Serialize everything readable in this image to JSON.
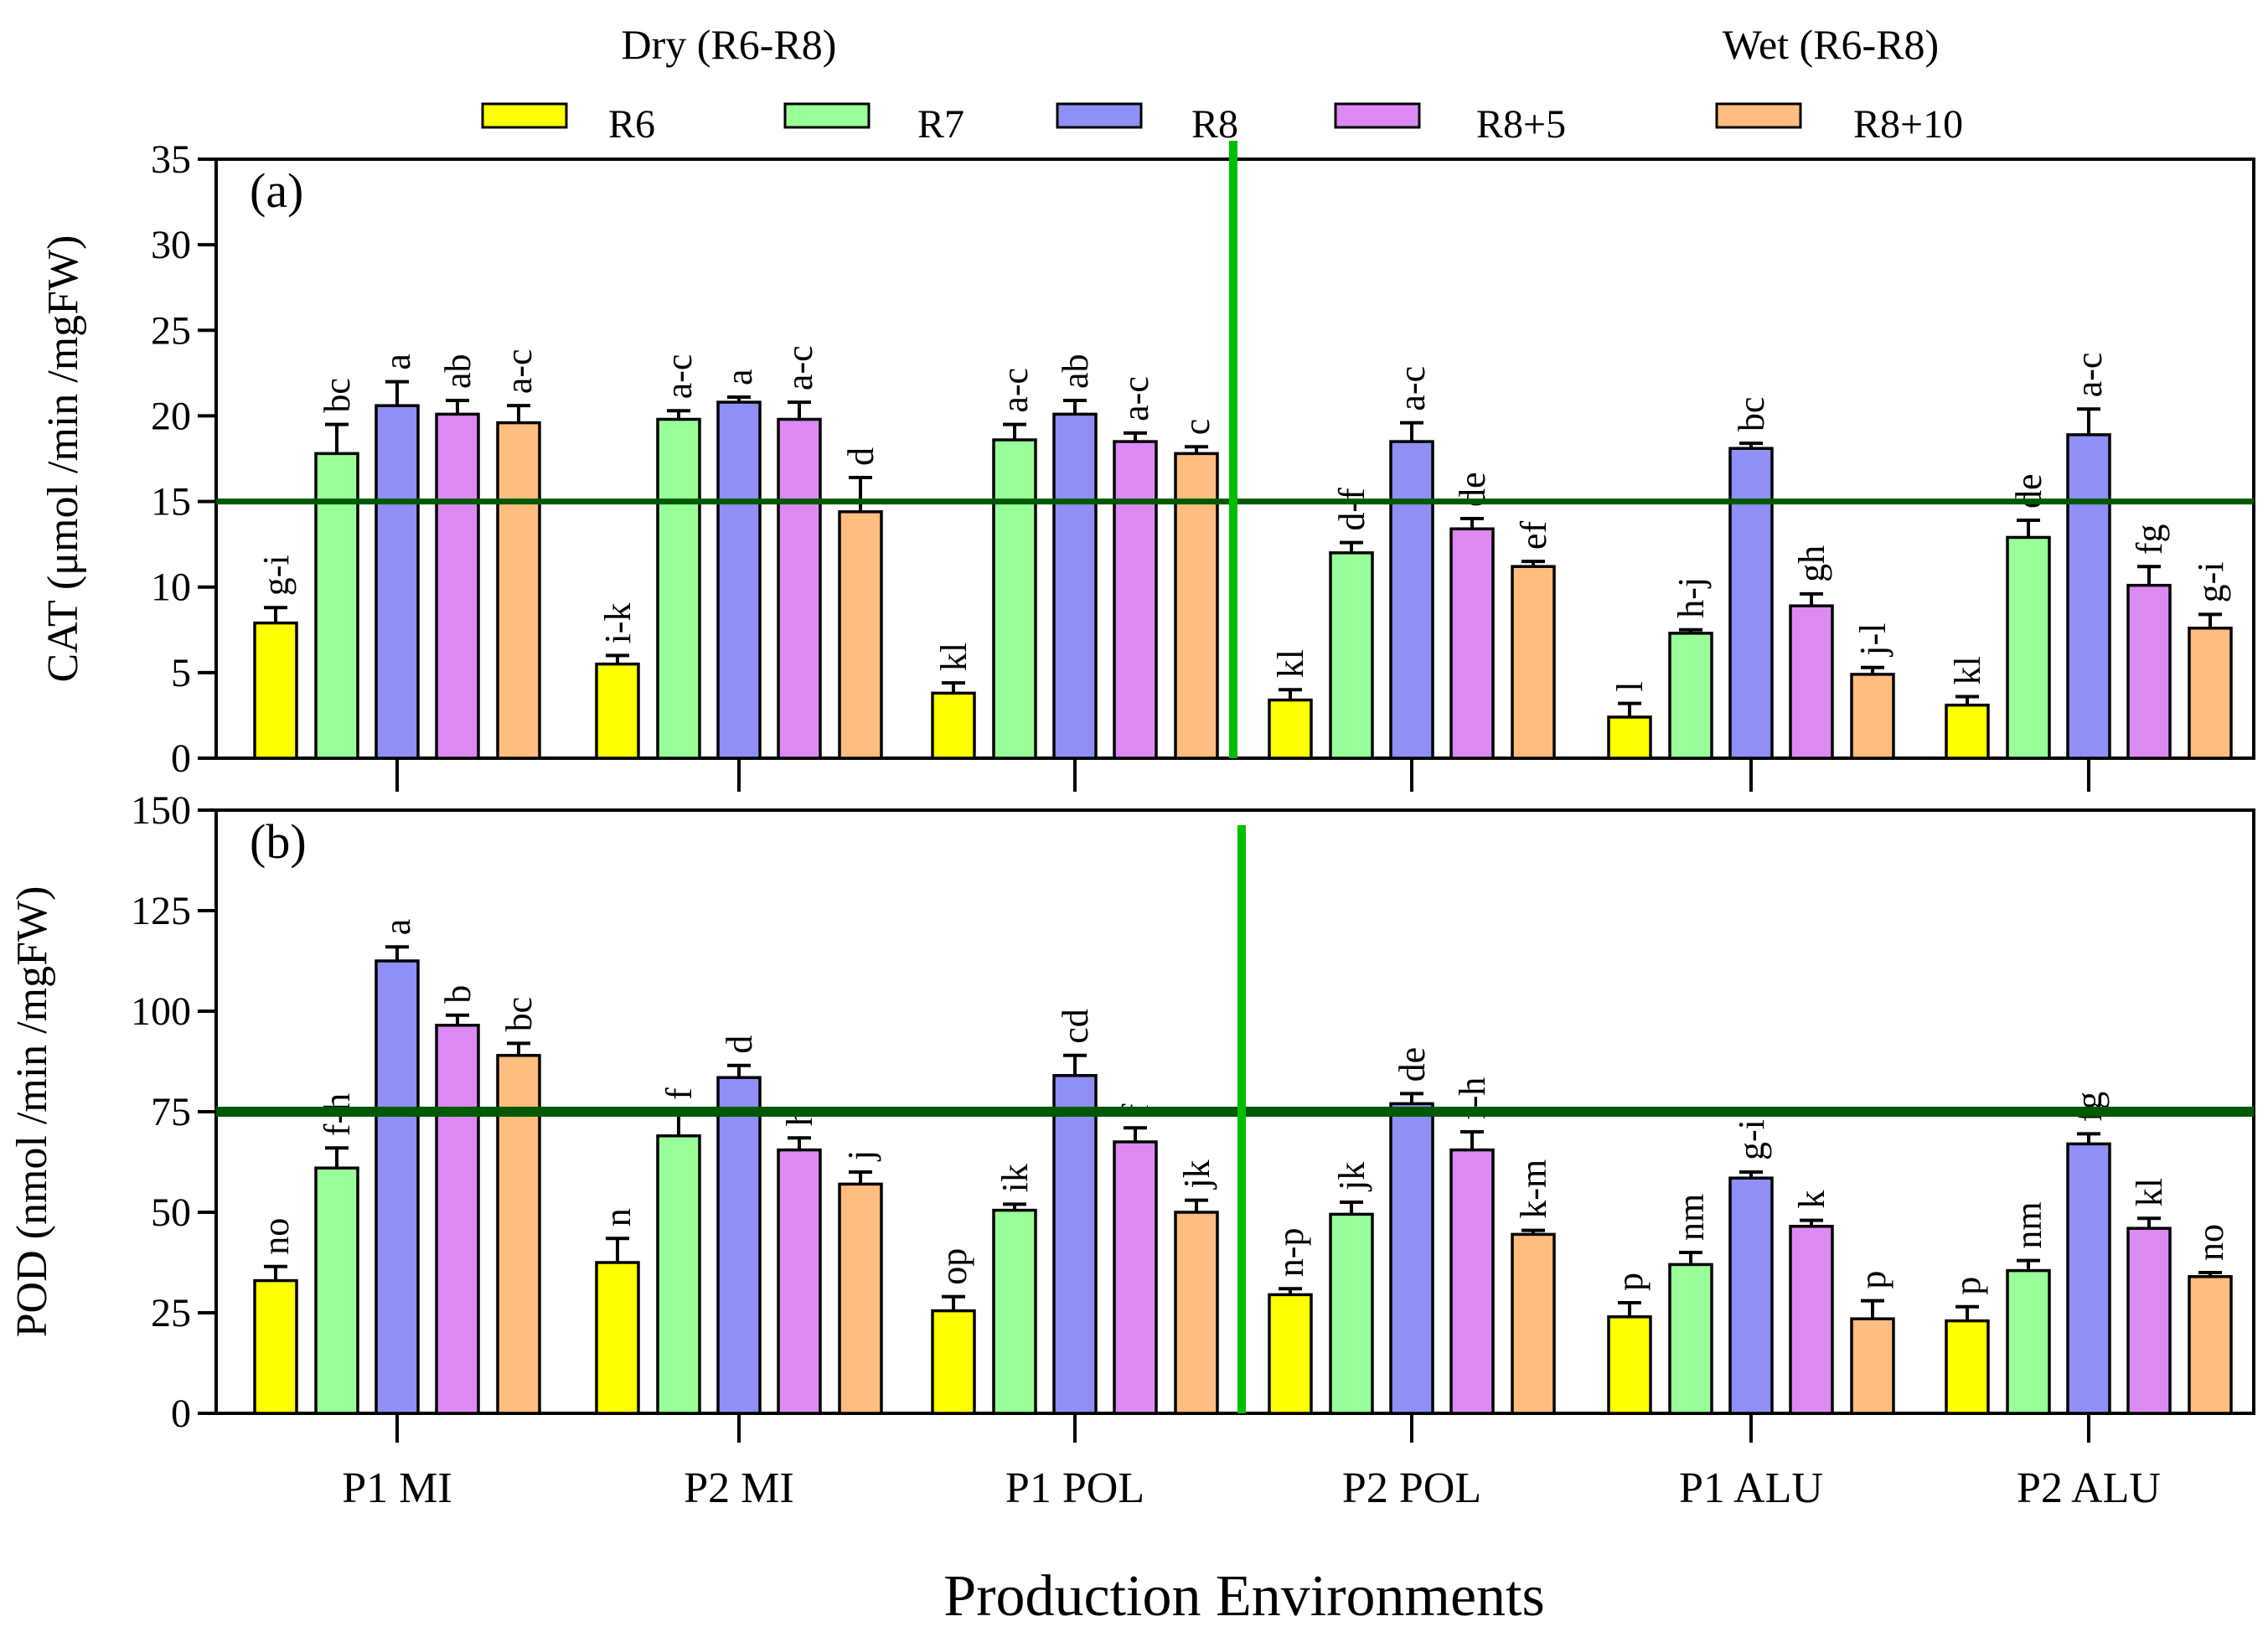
{
  "headers": {
    "dry": "Dry (R6-R8)",
    "wet": "Wet (R6-R8)"
  },
  "x_title": "Production Environments",
  "colors": {
    "R6": "#ffff00",
    "R7": "#99ff99",
    "R8": "#8f8ff5",
    "R8+5": "#dc8af2",
    "R8+10": "#ffbd7f",
    "threshold": "#005900",
    "divider": "#00bf00"
  },
  "chart_data": [
    {
      "type": "bar",
      "panel_label": "(a)",
      "ylabel": "CAT (μmol /min /mgFW)",
      "ylim": [
        0,
        35
      ],
      "yticks": [
        0,
        5,
        10,
        15,
        20,
        25,
        30,
        35
      ],
      "threshold": 15,
      "categories": [
        "P1 MI",
        "P2 MI",
        "P1 POL",
        "P2 POL",
        "P1 ALU",
        "P2 ALU"
      ],
      "series": [
        {
          "name": "R6",
          "values": [
            7.9,
            5.5,
            3.8,
            3.4,
            2.4,
            3.1
          ],
          "errors": [
            0.9,
            0.5,
            0.6,
            0.6,
            0.8,
            0.5
          ],
          "letters": [
            "g-i",
            "i-k",
            "kl",
            "kl",
            "l",
            "kl"
          ]
        },
        {
          "name": "R7",
          "values": [
            17.8,
            19.8,
            18.6,
            12.0,
            7.3,
            12.9
          ],
          "errors": [
            1.7,
            0.5,
            0.9,
            0.6,
            0.2,
            1.0
          ],
          "letters": [
            "bc",
            "a-c",
            "a-c",
            "d-f",
            "h-j",
            "de"
          ]
        },
        {
          "name": "R8",
          "values": [
            20.6,
            20.8,
            20.1,
            18.5,
            18.1,
            18.9
          ],
          "errors": [
            1.4,
            0.3,
            0.8,
            1.1,
            0.3,
            1.5
          ],
          "letters": [
            "a",
            "a",
            "ab",
            "a-c",
            "bc",
            "a-c"
          ]
        },
        {
          "name": "R8+5",
          "values": [
            20.1,
            19.8,
            18.5,
            13.4,
            8.9,
            10.1
          ],
          "errors": [
            0.8,
            1.0,
            0.5,
            0.6,
            0.7,
            1.1
          ],
          "letters": [
            "ab",
            "a-c",
            "a-c",
            "de",
            "gh",
            "fg"
          ]
        },
        {
          "name": "R8+10",
          "values": [
            19.6,
            14.4,
            17.8,
            11.2,
            4.9,
            7.6
          ],
          "errors": [
            1.0,
            2.0,
            0.4,
            0.3,
            0.4,
            0.8
          ],
          "letters": [
            "a-c",
            "d",
            "c",
            "ef",
            "j-l",
            "g-i"
          ]
        }
      ]
    },
    {
      "type": "bar",
      "panel_label": "(b)",
      "ylabel": "POD (nmol /min /mgFW)",
      "ylim": [
        0,
        150
      ],
      "yticks": [
        0,
        25,
        50,
        75,
        100,
        125,
        150
      ],
      "threshold": 75,
      "categories": [
        "P1 MI",
        "P2 MI",
        "P1 POL",
        "P2 POL",
        "P1 ALU",
        "P2 ALU"
      ],
      "series": [
        {
          "name": "R6",
          "values": [
            33,
            37.5,
            25.5,
            29.5,
            24,
            23
          ],
          "errors": [
            3.5,
            6,
            3.5,
            1.5,
            3.5,
            3.5
          ],
          "letters": [
            "no",
            "n",
            "op",
            "n-p",
            "p",
            "p"
          ]
        },
        {
          "name": "R7",
          "values": [
            61,
            69,
            50.5,
            49.5,
            37,
            35.5
          ],
          "errors": [
            5,
            6,
            1.5,
            3,
            3,
            2.5
          ],
          "letters": [
            "f-h",
            "f",
            "ik",
            "jk",
            "nm",
            "nm"
          ]
        },
        {
          "name": "R8",
          "values": [
            112.5,
            83.5,
            84,
            77,
            58.5,
            67
          ],
          "errors": [
            3.5,
            3,
            5,
            2.5,
            1.5,
            2.5
          ],
          "letters": [
            "a",
            "d",
            "cd",
            "de",
            "g-i",
            "fg"
          ]
        },
        {
          "name": "R8+5",
          "values": [
            96.5,
            65.5,
            67.5,
            65.5,
            46.5,
            46
          ],
          "errors": [
            2.5,
            3,
            3.5,
            4.5,
            1.5,
            2.5
          ],
          "letters": [
            "b",
            "h",
            "f",
            "f-h",
            "k",
            "kl"
          ]
        },
        {
          "name": "R8+10",
          "values": [
            89,
            57,
            50,
            44.5,
            23.5,
            34
          ],
          "errors": [
            3,
            3,
            3,
            1,
            4.5,
            1
          ],
          "letters": [
            "bc",
            "j",
            "jk",
            "k-m",
            "p",
            "no"
          ]
        }
      ]
    }
  ]
}
